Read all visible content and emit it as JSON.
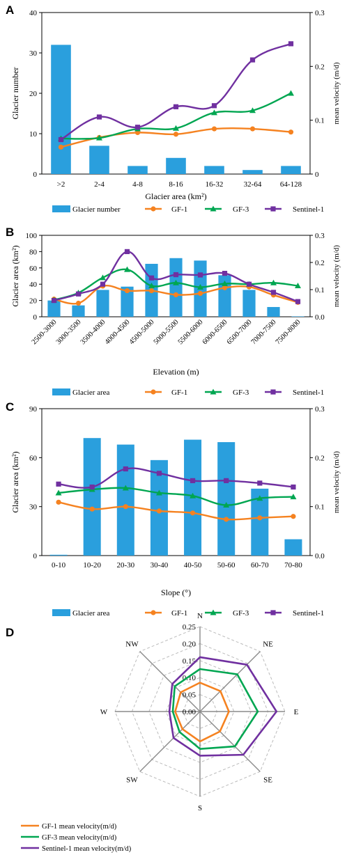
{
  "chart_data": [
    {
      "panel": "A",
      "type": "bar",
      "categories": [
        ">2",
        "2-4",
        "4-8",
        "8-16",
        "16-32",
        "32-64",
        "64-128"
      ],
      "xlabel": "Glacier area (km²)",
      "ylabel": "Glacier number",
      "y2label": "mean velocity (m/d)",
      "ylim": [
        0,
        40
      ],
      "yticks": [
        0,
        10,
        20,
        30,
        40
      ],
      "y2lim": [
        0,
        0.3
      ],
      "y2ticks": [
        "0",
        "0.1",
        "0.2",
        "0.3"
      ],
      "bar_series": {
        "name": "Glacier number",
        "values": [
          32,
          7,
          2,
          4,
          2,
          1,
          2
        ]
      },
      "series": [
        {
          "name": "GF-1",
          "values": [
            0.05,
            0.068,
            0.077,
            0.074,
            0.084,
            0.084,
            0.078
          ]
        },
        {
          "name": "GF-3",
          "values": [
            0.066,
            0.067,
            0.084,
            0.085,
            0.114,
            0.118,
            0.15
          ]
        },
        {
          "name": "Sentinel-1",
          "values": [
            0.064,
            0.106,
            0.087,
            0.125,
            0.127,
            0.212,
            0.242
          ]
        }
      ],
      "legend": "bottom"
    },
    {
      "panel": "B",
      "type": "bar",
      "categories": [
        "2500-3000",
        "3000-3500",
        "3500-4000",
        "4000-4500",
        "4500-5000",
        "5000-5500",
        "5500-6000",
        "6000-6500",
        "6500-7000",
        "7000-7500",
        "7500-8000"
      ],
      "xlabel": "Elevation (m)",
      "ylabel": "Glacier area (km²)",
      "y2label": "mean velocity (m/d)",
      "ylim": [
        0,
        100
      ],
      "yticks": [
        0,
        20,
        40,
        60,
        80,
        100
      ],
      "y2lim": [
        0,
        0.3
      ],
      "y2ticks": [
        "0.0",
        "0.1",
        "0.2",
        "0.3"
      ],
      "bar_series": {
        "name": "Glacier area",
        "values": [
          20,
          14,
          33,
          37,
          65,
          72,
          69,
          51,
          33,
          12,
          0.5
        ]
      },
      "series": [
        {
          "name": "GF-1",
          "values": [
            0.065,
            0.05,
            0.113,
            0.096,
            0.096,
            0.081,
            0.086,
            0.107,
            0.11,
            0.08,
            0.053
          ]
        },
        {
          "name": "GF-3",
          "values": [
            0.062,
            0.088,
            0.144,
            0.174,
            0.114,
            0.125,
            0.109,
            0.122,
            0.12,
            0.125,
            0.114
          ]
        },
        {
          "name": "Sentinel-1",
          "values": [
            0.06,
            0.084,
            0.12,
            0.24,
            0.143,
            0.155,
            0.154,
            0.16,
            0.12,
            0.09,
            0.056
          ]
        }
      ],
      "legend": "bottom"
    },
    {
      "panel": "C",
      "type": "bar",
      "categories": [
        "0-10",
        "10-20",
        "20-30",
        "30-40",
        "40-50",
        "50-60",
        "60-70",
        "70-80"
      ],
      "xlabel": "Slope (°)",
      "ylabel": "Glacier area (km²)",
      "y2label": "mean velocity (m/d)",
      "ylim": [
        0,
        90
      ],
      "yticks": [
        0,
        30,
        60,
        90
      ],
      "y2lim": [
        0,
        0.3
      ],
      "y2ticks": [
        "0.0",
        "0.1",
        "0.2",
        "0.3"
      ],
      "bar_series": {
        "name": "Glacier area",
        "values": [
          0.5,
          72,
          68,
          58.5,
          71,
          69.5,
          41,
          10
        ]
      },
      "series": [
        {
          "name": "GF-1",
          "values": [
            0.109,
            0.095,
            0.1,
            0.091,
            0.087,
            0.074,
            0.077,
            0.08
          ]
        },
        {
          "name": "GF-3",
          "values": [
            0.128,
            0.135,
            0.138,
            0.128,
            0.122,
            0.103,
            0.117,
            0.12
          ]
        },
        {
          "name": "Sentinel-1",
          "values": [
            0.146,
            0.14,
            0.177,
            0.168,
            0.153,
            0.153,
            0.148,
            0.14
          ]
        }
      ],
      "legend": "bottom"
    },
    {
      "panel": "D",
      "type": "radar",
      "directions": [
        "N",
        "NE",
        "E",
        "SE",
        "S",
        "SW",
        "W",
        "NW"
      ],
      "rmax": 0.25,
      "rticks": [
        "0.00",
        "0.05",
        "0.10",
        "0.15",
        "0.20",
        "0.25"
      ],
      "series": [
        {
          "name": "GF-1 mean velocity(m/d)",
          "values": [
            0.085,
            0.085,
            0.085,
            0.083,
            0.088,
            0.073,
            0.073,
            0.08
          ]
        },
        {
          "name": "GF-3 mean velocity(m/d)",
          "values": [
            0.125,
            0.155,
            0.17,
            0.145,
            0.11,
            0.085,
            0.08,
            0.105
          ]
        },
        {
          "name": "Sentinel-1 mean velocity(m/d)",
          "values": [
            0.16,
            0.195,
            0.225,
            0.18,
            0.13,
            0.11,
            0.09,
            0.115
          ]
        }
      ],
      "legend": "bottom-left"
    }
  ],
  "panel_labels": [
    "A",
    "B",
    "C",
    "D"
  ],
  "colors": {
    "bar": "#2A9FDD",
    "GF-1": "#F58220",
    "GF-3": "#00A651",
    "Sentinel-1": "#7030A0",
    "axis": "#000000",
    "grid": "#BBBBBB"
  }
}
